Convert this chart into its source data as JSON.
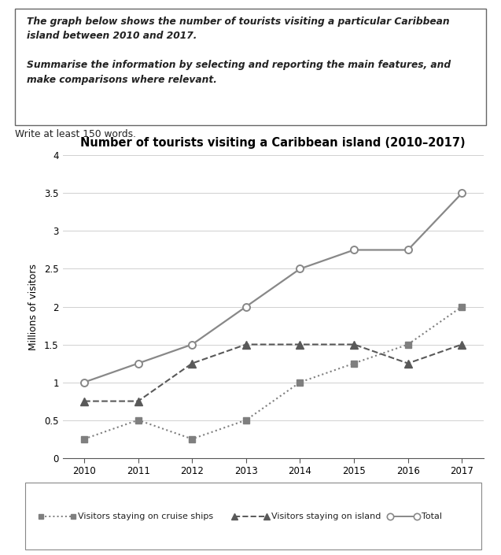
{
  "title": "Number of tourists visiting a Caribbean island (2010–2017)",
  "ylabel": "Millions of visitors",
  "years": [
    2010,
    2011,
    2012,
    2013,
    2014,
    2015,
    2016,
    2017
  ],
  "cruise": [
    0.25,
    0.5,
    0.25,
    0.5,
    1.0,
    1.25,
    1.5,
    2.0
  ],
  "island": [
    0.75,
    0.75,
    1.25,
    1.5,
    1.5,
    1.5,
    1.25,
    1.5
  ],
  "total": [
    1.0,
    1.25,
    1.5,
    2.0,
    2.5,
    2.75,
    2.75,
    3.5
  ],
  "ylim": [
    0,
    4
  ],
  "yticks": [
    0,
    0.5,
    1.0,
    1.5,
    2.0,
    2.5,
    3.0,
    3.5,
    4.0
  ],
  "color_cruise": "#7f7f7f",
  "color_island": "#595959",
  "color_total": "#888888",
  "prompt_line1": "The graph below shows the number of tourists visiting a particular Caribbean",
  "prompt_line2": "island between 2010 and 2017.",
  "prompt_line3": "Summarise the information by selecting and reporting the main features, and",
  "prompt_line4": "make comparisons where relevant.",
  "subtext": "Write at least 150 words.",
  "legend_cruise": "Visitors staying on cruise ships",
  "legend_island": "Visitors staying on island",
  "legend_total": "Total"
}
